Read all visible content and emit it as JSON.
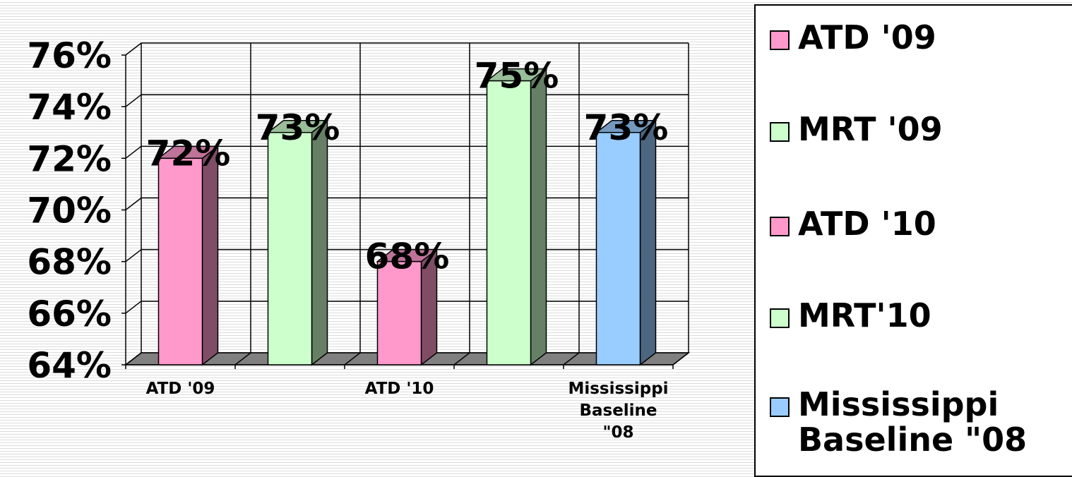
{
  "chart_data": {
    "type": "bar",
    "title": "",
    "xlabel": "",
    "ylabel": "",
    "ylim": [
      64,
      76
    ],
    "y_ticks": [
      "64%",
      "66%",
      "68%",
      "70%",
      "72%",
      "74%",
      "76%"
    ],
    "x_tick_labels": [
      "ATD '09",
      "",
      "ATD '10",
      "",
      "Mississippi Baseline \"08"
    ],
    "categories": [
      "ATD '09",
      "MRT '09",
      "ATD '10",
      "MRT'10",
      "Mississippi Baseline \"08"
    ],
    "values": [
      72,
      73,
      68,
      75,
      73
    ],
    "data_labels": [
      "72%",
      "73%",
      "68%",
      "75%",
      "73%"
    ],
    "grid": true,
    "style": "3d-column",
    "legend_position": "right",
    "series": [
      {
        "name": "ATD '09",
        "color": "#ff99cc",
        "values": [
          72,
          null,
          null,
          null,
          null
        ]
      },
      {
        "name": "MRT '09",
        "color": "#ccffcc",
        "values": [
          null,
          73,
          null,
          null,
          null
        ]
      },
      {
        "name": "ATD '10",
        "color": "#ff99cc",
        "values": [
          null,
          null,
          68,
          null,
          null
        ]
      },
      {
        "name": "MRT'10",
        "color": "#ccffcc",
        "values": [
          null,
          null,
          null,
          75,
          null
        ]
      },
      {
        "name": "Mississippi Baseline \"08",
        "color": "#99ccff",
        "values": [
          null,
          null,
          null,
          null,
          73
        ]
      }
    ]
  },
  "legend": {
    "items": [
      {
        "label": "ATD '09",
        "color": "#ff99cc"
      },
      {
        "label": "MRT '09",
        "color": "#ccffcc"
      },
      {
        "label": "ATD '10",
        "color": "#ff99cc"
      },
      {
        "label": "MRT'10",
        "color": "#ccffcc"
      },
      {
        "label": "Mississippi\nBaseline \"08",
        "color": "#99ccff"
      }
    ]
  }
}
